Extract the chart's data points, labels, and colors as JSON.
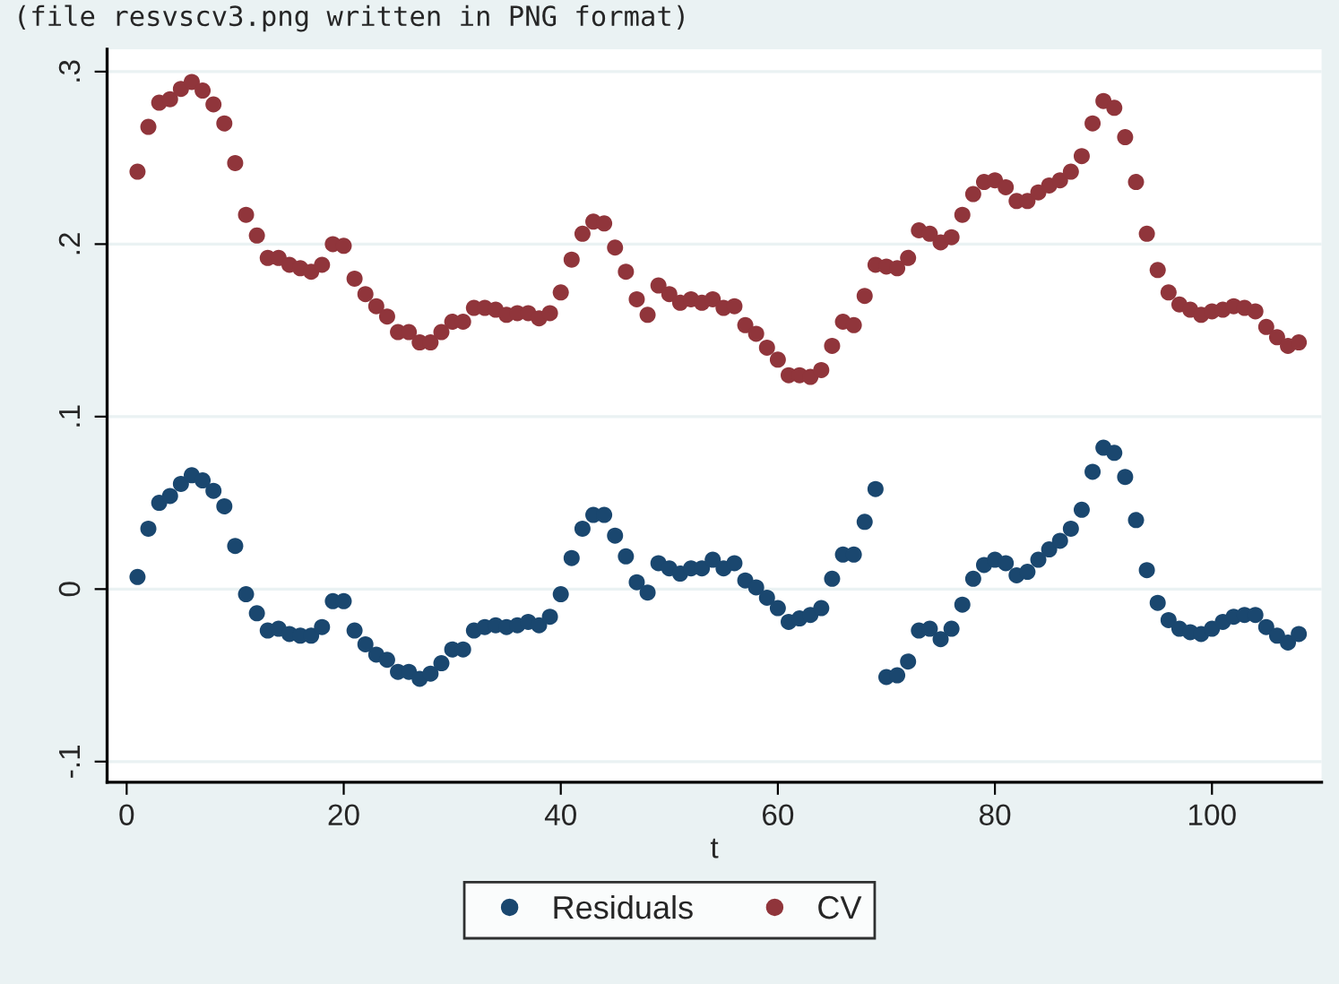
{
  "chart_data": {
    "type": "scatter",
    "xlabel": "t",
    "annotations": [
      "(file resvscv3.png written in PNG format)"
    ],
    "x": [
      1,
      2,
      3,
      4,
      5,
      6,
      7,
      8,
      9,
      10,
      11,
      12,
      13,
      14,
      15,
      16,
      17,
      18,
      19,
      20,
      21,
      22,
      23,
      24,
      25,
      26,
      27,
      28,
      29,
      30,
      31,
      32,
      33,
      34,
      35,
      36,
      37,
      38,
      39,
      40,
      41,
      42,
      43,
      44,
      45,
      46,
      47,
      48,
      49,
      50,
      51,
      52,
      53,
      54,
      55,
      56,
      57,
      58,
      59,
      60,
      61,
      62,
      63,
      64,
      65,
      66,
      67,
      68,
      69,
      70,
      71,
      72,
      73,
      74,
      75,
      76,
      77,
      78,
      79,
      80,
      81,
      82,
      83,
      84,
      85,
      86,
      87,
      88,
      89,
      90,
      91,
      92,
      93,
      94,
      95,
      96,
      97,
      98,
      99,
      100,
      101,
      102,
      103,
      104,
      105,
      106,
      107,
      108
    ],
    "series": [
      {
        "name": "Residuals",
        "color": "#1a476f",
        "values": [
          0.007,
          0.035,
          0.05,
          0.054,
          0.061,
          0.066,
          0.063,
          0.057,
          0.048,
          0.025,
          -0.003,
          -0.014,
          -0.024,
          -0.023,
          -0.026,
          -0.027,
          -0.027,
          -0.022,
          -0.007,
          -0.007,
          -0.024,
          -0.032,
          -0.038,
          -0.041,
          -0.048,
          -0.048,
          -0.052,
          -0.049,
          -0.043,
          -0.035,
          -0.035,
          -0.024,
          -0.022,
          -0.021,
          -0.022,
          -0.021,
          -0.019,
          -0.021,
          -0.016,
          -0.003,
          0.018,
          0.035,
          0.043,
          0.043,
          0.031,
          0.019,
          0.004,
          -0.002,
          0.015,
          0.012,
          0.009,
          0.012,
          0.012,
          0.017,
          0.012,
          0.015,
          0.005,
          0.001,
          -0.005,
          -0.011,
          -0.019,
          -0.017,
          -0.015,
          -0.011,
          0.006,
          0.02,
          0.02,
          0.039,
          0.058,
          -0.051,
          -0.05,
          -0.042,
          -0.024,
          -0.023,
          -0.029,
          -0.023,
          -0.009,
          0.006,
          0.014,
          0.017,
          0.015,
          0.008,
          0.01,
          0.017,
          0.023,
          0.028,
          0.035,
          0.046,
          0.068,
          0.082,
          0.079,
          0.065,
          0.04,
          0.011,
          -0.008,
          -0.018,
          -0.023,
          -0.025,
          -0.026,
          -0.023,
          -0.019,
          -0.016,
          -0.015,
          -0.015,
          -0.022,
          -0.027,
          -0.031,
          -0.026
        ]
      },
      {
        "name": "CV",
        "color": "#90353b",
        "values": [
          0.242,
          0.268,
          0.282,
          0.284,
          0.29,
          0.294,
          0.289,
          0.281,
          0.27,
          0.247,
          0.217,
          0.205,
          0.192,
          0.192,
          0.188,
          0.186,
          0.184,
          0.188,
          0.2,
          0.199,
          0.18,
          0.171,
          0.164,
          0.158,
          0.149,
          0.149,
          0.143,
          0.143,
          0.149,
          0.155,
          0.155,
          0.163,
          0.163,
          0.162,
          0.159,
          0.16,
          0.16,
          0.157,
          0.16,
          0.172,
          0.191,
          0.206,
          0.213,
          0.212,
          0.198,
          0.184,
          0.168,
          0.159,
          0.176,
          0.171,
          0.166,
          0.168,
          0.166,
          0.168,
          0.163,
          0.164,
          0.153,
          0.148,
          0.14,
          0.133,
          0.124,
          0.124,
          0.123,
          0.127,
          0.141,
          0.155,
          0.153,
          0.17,
          0.188,
          0.187,
          0.186,
          0.192,
          0.208,
          0.206,
          0.201,
          0.204,
          0.217,
          0.229,
          0.236,
          0.237,
          0.233,
          0.225,
          0.225,
          0.23,
          0.234,
          0.237,
          0.242,
          0.251,
          0.27,
          0.283,
          0.279,
          0.262,
          0.236,
          0.206,
          0.185,
          0.172,
          0.165,
          0.162,
          0.159,
          0.161,
          0.162,
          0.164,
          0.163,
          0.161,
          0.152,
          0.146,
          0.141,
          0.143
        ]
      }
    ],
    "xlim": [
      -1.8,
      110.1
    ],
    "xticks": [
      0,
      20,
      40,
      60,
      80,
      100
    ],
    "ylim": [
      -0.112,
      0.313
    ],
    "yticks": [
      {
        "value": -0.1,
        "label": "-.1"
      },
      0,
      {
        "value": 0.1,
        "label": ".1"
      },
      {
        "value": 0.2,
        "label": ".2"
      },
      {
        "value": 0.3,
        "label": ".3"
      }
    ],
    "grid": "y",
    "legend": "bottom",
    "marker": "circle"
  }
}
